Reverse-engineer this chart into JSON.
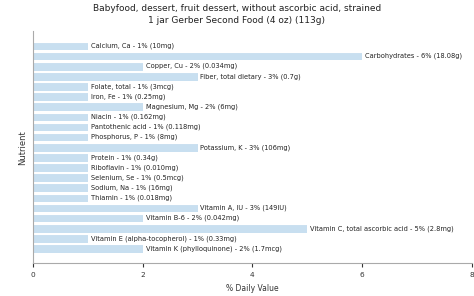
{
  "title1": "Babyfood, dessert, fruit dessert, without ascorbic acid, strained",
  "title2": "1 jar Gerber Second Food (4 oz) (113g)",
  "xlabel": "% Daily Value",
  "ylabel": "Nutrient",
  "xlim": [
    0,
    8
  ],
  "xticks": [
    0,
    2,
    4,
    6,
    8
  ],
  "bar_color": "#c8dff0",
  "bg_color": "#ffffff",
  "nutrients": [
    {
      "label": "Calcium, Ca - 1% (10mg)",
      "value": 1
    },
    {
      "label": "Carbohydrates - 6% (18.08g)",
      "value": 6
    },
    {
      "label": "Copper, Cu - 2% (0.034mg)",
      "value": 2
    },
    {
      "label": "Fiber, total dietary - 3% (0.7g)",
      "value": 3
    },
    {
      "label": "Folate, total - 1% (3mcg)",
      "value": 1
    },
    {
      "label": "Iron, Fe - 1% (0.25mg)",
      "value": 1
    },
    {
      "label": "Magnesium, Mg - 2% (6mg)",
      "value": 2
    },
    {
      "label": "Niacin - 1% (0.162mg)",
      "value": 1
    },
    {
      "label": "Pantothenic acid - 1% (0.118mg)",
      "value": 1
    },
    {
      "label": "Phosphorus, P - 1% (8mg)",
      "value": 1
    },
    {
      "label": "Potassium, K - 3% (106mg)",
      "value": 3
    },
    {
      "label": "Protein - 1% (0.34g)",
      "value": 1
    },
    {
      "label": "Riboflavin - 1% (0.010mg)",
      "value": 1
    },
    {
      "label": "Selenium, Se - 1% (0.5mcg)",
      "value": 1
    },
    {
      "label": "Sodium, Na - 1% (16mg)",
      "value": 1
    },
    {
      "label": "Thiamin - 1% (0.018mg)",
      "value": 1
    },
    {
      "label": "Vitamin A, IU - 3% (149IU)",
      "value": 3
    },
    {
      "label": "Vitamin B-6 - 2% (0.042mg)",
      "value": 2
    },
    {
      "label": "Vitamin C, total ascorbic acid - 5% (2.8mg)",
      "value": 5
    },
    {
      "label": "Vitamin E (alpha-tocopherol) - 1% (0.33mg)",
      "value": 1
    },
    {
      "label": "Vitamin K (phylloquinone) - 2% (1.7mcg)",
      "value": 2
    }
  ],
  "title_fontsize": 6.5,
  "label_fontsize": 4.8,
  "xlabel_fontsize": 5.5,
  "ylabel_fontsize": 6.0
}
